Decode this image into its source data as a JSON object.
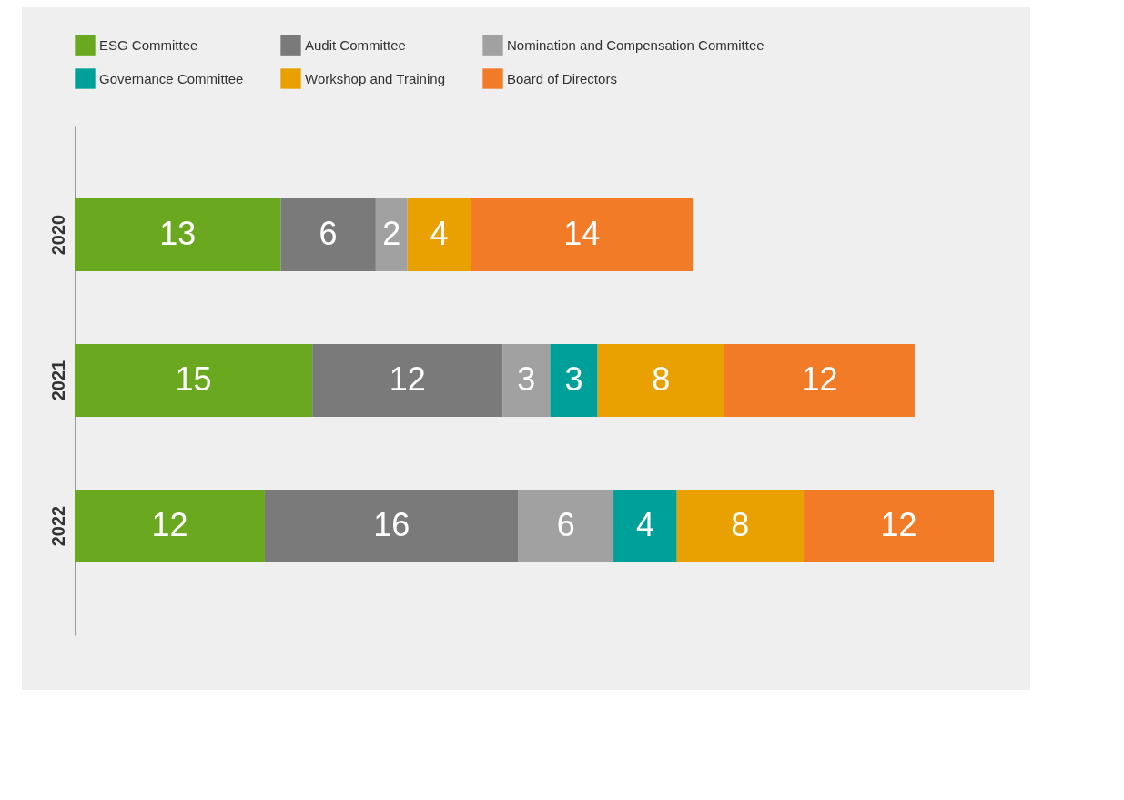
{
  "chart_data": {
    "type": "bar",
    "orientation": "horizontal",
    "stacked": true,
    "data_labels": true,
    "legend": "top",
    "grid": false,
    "categories": [
      "2020",
      "2021",
      "2022"
    ],
    "series": [
      {
        "name": "ESG Committee",
        "color": "#6aa820",
        "values": [
          13,
          15,
          12
        ]
      },
      {
        "name": "Audit Committee",
        "color": "#7a7a7a",
        "values": [
          6,
          12,
          16
        ]
      },
      {
        "name": "Nomination and Compensation Committee",
        "color": "#a1a1a1",
        "values": [
          2,
          3,
          6
        ]
      },
      {
        "name": "Governance Committee",
        "color": "#00a09a",
        "values": [
          null,
          3,
          4
        ]
      },
      {
        "name": "Workshop and Training",
        "color": "#e8a100",
        "values": [
          4,
          8,
          8
        ]
      },
      {
        "name": "Board of Directors",
        "color": "#f27b27",
        "values": [
          14,
          12,
          12
        ]
      }
    ]
  }
}
